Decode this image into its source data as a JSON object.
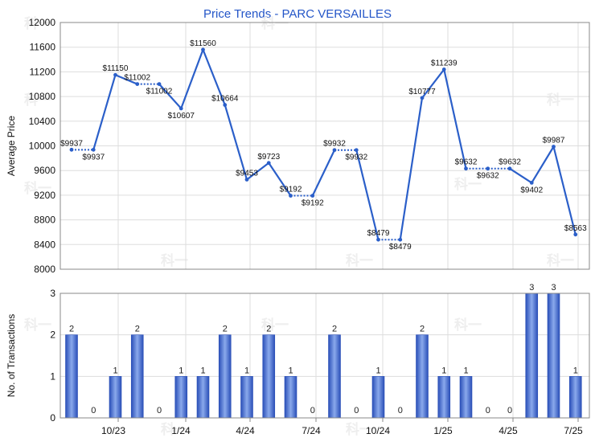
{
  "title": "Price Trends - PARC VERSAILLES",
  "watermark": "科一",
  "colors": {
    "line": "#2b5fc9",
    "bar_dark": "#2a4fb8",
    "bar_light": "#8aa9ec",
    "grid": "#dddddd",
    "axis": "#888888",
    "title": "#2456c8"
  },
  "chart_data": [
    {
      "type": "line",
      "title": "Price Trends - PARC VERSAILLES",
      "ylabel": "Average Price",
      "ylim": [
        8000,
        12000
      ],
      "yticks": [
        8000,
        8400,
        8800,
        9200,
        9600,
        10000,
        10400,
        10800,
        11200,
        11600,
        12000
      ],
      "grid": true,
      "series": [
        {
          "values": [
            9937,
            9937,
            11150,
            11002,
            11002,
            10607,
            11560,
            10664,
            9453,
            9723,
            9192,
            9192,
            9932,
            9932,
            8479,
            8479,
            10777,
            11239,
            9632,
            9632,
            9632,
            9402,
            9987,
            8563
          ],
          "labels": [
            "$9937",
            "$9937",
            "$11150",
            "$11002",
            "$11002",
            "$10607",
            "$11560",
            "$10664",
            "$9453",
            "$9723",
            "$9192",
            "$9192",
            "$9932",
            "$9932",
            "$8479",
            "$8479",
            "$10777",
            "$11239",
            "$9632",
            "$9632",
            "$9632",
            "$9402",
            "$9987",
            "$8563"
          ],
          "carried_forward": [
            false,
            true,
            false,
            false,
            true,
            false,
            false,
            false,
            false,
            false,
            false,
            true,
            false,
            true,
            false,
            true,
            false,
            false,
            false,
            true,
            true,
            false,
            false,
            false
          ]
        }
      ]
    },
    {
      "type": "bar",
      "ylabel": "No. of Transactions",
      "ylim": [
        0,
        3
      ],
      "yticks": [
        0,
        1,
        2,
        3
      ],
      "grid": true,
      "x_tick_labels": [
        "10/23",
        "1/24",
        "4/24",
        "7/24",
        "10/24",
        "1/25",
        "4/25",
        "7/25"
      ],
      "values": [
        2,
        0,
        1,
        2,
        0,
        1,
        1,
        2,
        1,
        2,
        1,
        0,
        2,
        0,
        1,
        0,
        2,
        1,
        1,
        0,
        0,
        3,
        3,
        1
      ]
    }
  ]
}
